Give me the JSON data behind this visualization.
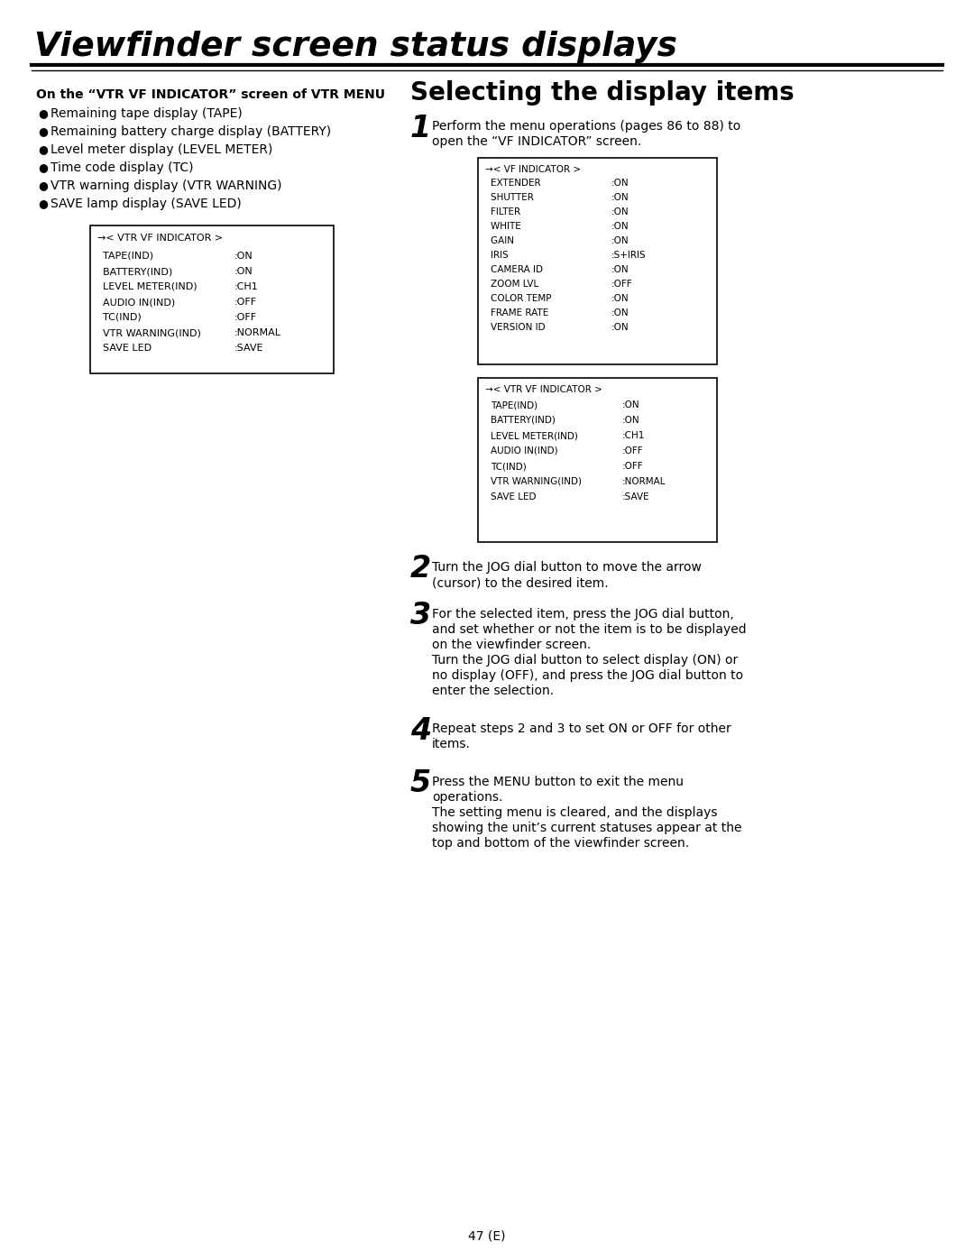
{
  "page_title": "Viewfinder screen status displays",
  "page_number": "47 (E)",
  "bg_color": "#ffffff",
  "left_section_title": "On the “VTR VF INDICATOR” screen of VTR MENU",
  "left_bullets": [
    "Remaining tape display (TAPE)",
    "Remaining battery charge display (BATTERY)",
    "Level meter display (LEVEL METER)",
    "Time code display (TC)",
    "VTR warning display (VTR WARNING)",
    "SAVE lamp display (SAVE LED)"
  ],
  "left_box_title": "→< VTR VF INDICATOR >",
  "left_box_lines": [
    [
      "TAPE(IND)        ",
      ":ON"
    ],
    [
      "BATTERY(IND)     ",
      ":ON"
    ],
    [
      "LEVEL METER(IND) ",
      ":CH1"
    ],
    [
      "AUDIO IN(IND)    ",
      ":OFF"
    ],
    [
      "TC(IND)          ",
      ":OFF"
    ],
    [
      "VTR WARNING(IND) ",
      ":NORMAL"
    ],
    [
      "SAVE LED         ",
      ":SAVE"
    ]
  ],
  "right_section_title": "Selecting the display items",
  "step1_num": "1",
  "step1_text1": "Perform the menu operations (pages 86 to 88) to",
  "step1_text2": "open the “VF INDICATOR” screen.",
  "box1_title": "→< VF INDICATOR >",
  "box1_lines": [
    [
      "EXTENDER   ",
      ":ON"
    ],
    [
      "SHUTTER    ",
      ":ON"
    ],
    [
      "FILTER     ",
      ":ON"
    ],
    [
      "WHITE      ",
      ":ON"
    ],
    [
      "GAIN       ",
      ":ON"
    ],
    [
      "IRIS       ",
      ":S+IRIS"
    ],
    [
      "CAMERA ID  ",
      ":ON"
    ],
    [
      "ZOOM LVL   ",
      ":OFF"
    ],
    [
      "COLOR TEMP ",
      ":ON"
    ],
    [
      "FRAME RATE ",
      ":ON"
    ],
    [
      "VERSION ID ",
      ":ON"
    ]
  ],
  "box2_title": "→< VTR VF INDICATOR >",
  "box2_lines": [
    [
      "TAPE(IND)        ",
      ":ON"
    ],
    [
      "BATTERY(IND)     ",
      ":ON"
    ],
    [
      "LEVEL METER(IND) ",
      ":CH1"
    ],
    [
      "AUDIO IN(IND)    ",
      ":OFF"
    ],
    [
      "TC(IND)          ",
      ":OFF"
    ],
    [
      "VTR WARNING(IND) ",
      ":NORMAL"
    ],
    [
      "SAVE LED         ",
      ":SAVE"
    ]
  ],
  "step2_text_line1": "Turn the JOG dial button to move the arrow",
  "step2_text_line2": "(cursor) to the desired item.",
  "step3_lines": [
    "For the selected item, press the JOG dial button,",
    "and set whether or not the item is to be displayed",
    "on the viewfinder screen.",
    "Turn the JOG dial button to select display (ON) or",
    "no display (OFF), and press the JOG dial button to",
    "enter the selection."
  ],
  "step4_lines": [
    "Repeat steps 2 and 3 to set ON or OFF for other",
    "items."
  ],
  "step5_lines": [
    "Press the MENU button to exit the menu",
    "operations.",
    "The setting menu is cleared, and the displays",
    "showing the unit’s current statuses appear at the",
    "top and bottom of the viewfinder screen."
  ]
}
